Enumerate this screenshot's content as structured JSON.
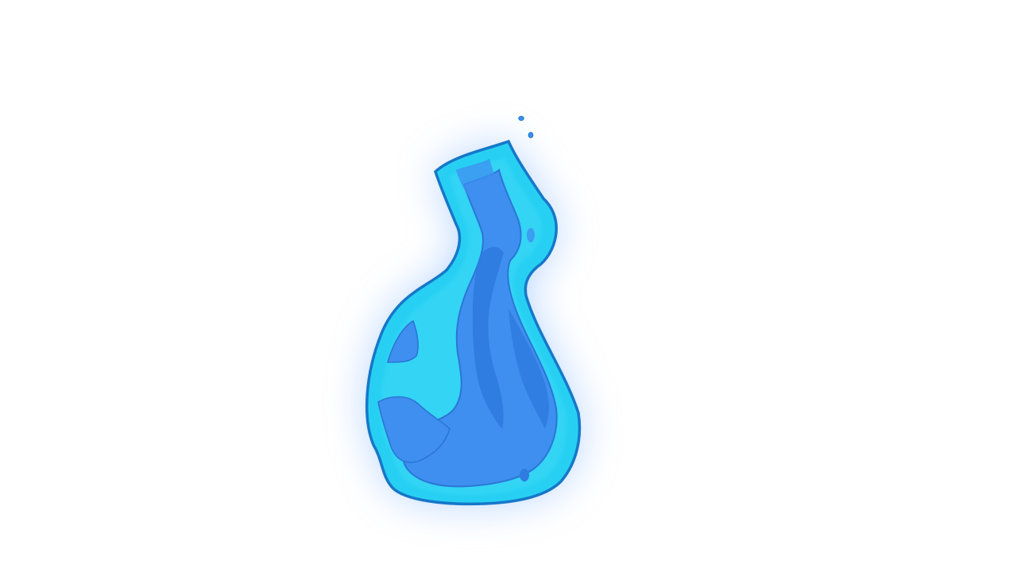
{
  "scene": {
    "subject": "blue-flame",
    "background_color": "#ffffff",
    "colors": {
      "glow": "#7fb2ff",
      "outer": "#27d0f2",
      "outline": "#1677c9",
      "inner": "#3f8ff0",
      "inner_dark": "#2f7be0"
    }
  }
}
